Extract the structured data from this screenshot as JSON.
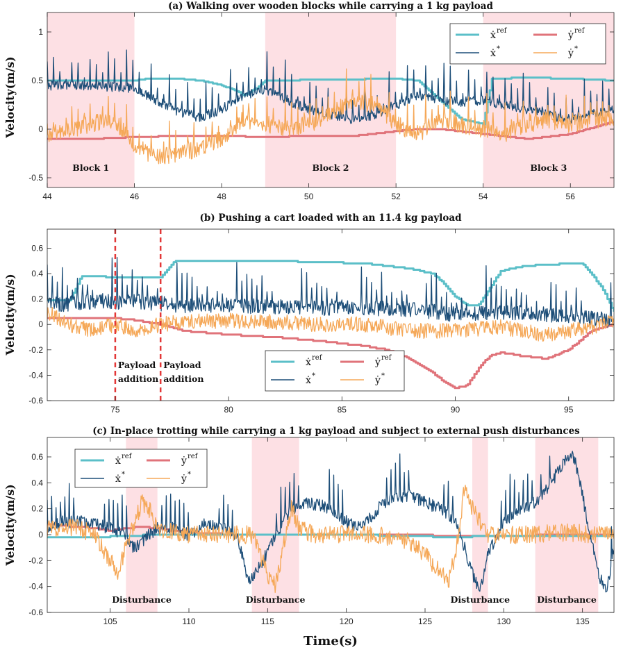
{
  "colors": {
    "x_ref": "#5bbfc8",
    "y_ref": "#e0737a",
    "x_star": "#1d4e78",
    "y_star": "#f5a858",
    "shade": "#fde0e4",
    "marker": "#e33838"
  },
  "xlabel": "Time(s)",
  "ylabel": "Velocity(m/s)",
  "chart_data": [
    {
      "id": "a",
      "type": "line",
      "title": "(a) Walking over wooden blocks while carrying a 1 kg payload",
      "xlim": [
        44,
        57
      ],
      "ylim": [
        -0.6,
        1.2
      ],
      "xticks": [
        44,
        46,
        48,
        50,
        52,
        54,
        56
      ],
      "yticks": [
        -0.5,
        0,
        0.5,
        1
      ],
      "ytick_labels": [
        "-0.5",
        "0",
        "0.5",
        "1"
      ],
      "legend": {
        "position": "top-right",
        "labels": [
          "ẋ",
          "ẏ",
          "ẋ",
          "ẏ"
        ],
        "sups": [
          "ref",
          "ref",
          "*",
          "*"
        ]
      },
      "shaded_regions": [
        {
          "x": [
            44,
            46
          ],
          "label": "Block 1"
        },
        {
          "x": [
            49,
            52
          ],
          "label": "Block 2"
        },
        {
          "x": [
            54,
            57
          ],
          "label": "Block 3"
        }
      ],
      "series": [
        {
          "name": "x_ref",
          "kind": "ref",
          "x": [
            44,
            46,
            46.3,
            47,
            47.5,
            48,
            48.3,
            48.5,
            48.8,
            49,
            52,
            52.5,
            53,
            53.5,
            54,
            54.2,
            55,
            56,
            57
          ],
          "values": [
            0.5,
            0.5,
            0.52,
            0.52,
            0.5,
            0.45,
            0.4,
            0.35,
            0.42,
            0.5,
            0.52,
            0.5,
            0.3,
            0.1,
            0.05,
            0.52,
            0.53,
            0.52,
            0.5
          ]
        },
        {
          "name": "y_ref",
          "kind": "ref",
          "x": [
            44,
            45,
            46,
            47,
            48,
            49,
            50,
            51,
            52,
            52.5,
            53,
            54,
            55,
            56,
            57
          ],
          "values": [
            -0.1,
            -0.1,
            -0.08,
            -0.07,
            -0.07,
            -0.08,
            -0.07,
            -0.07,
            -0.02,
            0.0,
            0.0,
            -0.05,
            -0.1,
            -0.05,
            0.08
          ]
        },
        {
          "name": "x_star",
          "kind": "meas",
          "x": [
            44,
            45,
            46,
            46.5,
            47,
            47.5,
            48,
            48.5,
            49,
            49.5,
            50,
            50.5,
            51,
            51.5,
            52,
            52.5,
            53,
            53.5,
            54,
            54.5,
            55,
            55.5,
            56,
            56.5,
            57
          ],
          "values": [
            0.45,
            0.45,
            0.42,
            0.3,
            0.18,
            0.12,
            0.2,
            0.35,
            0.4,
            0.3,
            0.2,
            0.15,
            0.1,
            0.15,
            0.25,
            0.35,
            0.3,
            0.28,
            0.3,
            0.25,
            0.2,
            0.15,
            0.1,
            0.15,
            0.2
          ],
          "noise": 0.05,
          "spike": 0.45,
          "period": 0.14
        },
        {
          "name": "y_star",
          "kind": "meas",
          "x": [
            44,
            44.5,
            45,
            45.5,
            46,
            46.5,
            47,
            47.5,
            48,
            48.5,
            49,
            49.5,
            50,
            50.5,
            51,
            51.5,
            52,
            52.5,
            53,
            53.5,
            54,
            54.5,
            55,
            55.5,
            56,
            56.5,
            57
          ],
          "values": [
            -0.05,
            0.0,
            0.05,
            0.1,
            -0.15,
            -0.3,
            -0.25,
            -0.2,
            -0.1,
            0.1,
            0.05,
            0.0,
            0.05,
            0.15,
            0.3,
            0.25,
            0.05,
            -0.05,
            0.1,
            0.05,
            0.0,
            -0.05,
            0.05,
            0.1,
            0.05,
            0.1,
            0.1
          ],
          "noise": 0.09,
          "spike": 0.35,
          "period": 0.14
        }
      ]
    },
    {
      "id": "b",
      "type": "line",
      "title": "(b) Pushing a cart loaded with an 11.4 kg payload",
      "xlim": [
        72,
        97
      ],
      "ylim": [
        -0.6,
        0.75
      ],
      "xticks": [
        75,
        80,
        85,
        90,
        95
      ],
      "yticks": [
        -0.6,
        -0.4,
        -0.2,
        0,
        0.2,
        0.4,
        0.6
      ],
      "ytick_labels": [
        "-0.6",
        "-0.4",
        "-0.2",
        "0",
        "0.2",
        "0.4",
        "0.6"
      ],
      "legend": {
        "position": "bottom-center",
        "labels": [
          "ẋ",
          "ẏ",
          "ẋ",
          "ẏ"
        ],
        "sups": [
          "ref",
          "ref",
          "*",
          "*"
        ]
      },
      "vlines": [
        {
          "x": 75,
          "label_lines": [
            "Payload",
            "addition"
          ]
        },
        {
          "x": 77,
          "label_lines": [
            "Payload",
            "addition"
          ]
        }
      ],
      "series": [
        {
          "name": "x_ref",
          "kind": "ref",
          "x": [
            72,
            73,
            73.5,
            74,
            75,
            76,
            77,
            77.6,
            78,
            80,
            82,
            84,
            86,
            87,
            88,
            89,
            89.5,
            90,
            90.5,
            91,
            91.5,
            92,
            93,
            94,
            95,
            95.6,
            96,
            96.5,
            97
          ],
          "values": [
            0.19,
            0.19,
            0.38,
            0.38,
            0.37,
            0.37,
            0.37,
            0.5,
            0.5,
            0.5,
            0.5,
            0.49,
            0.48,
            0.46,
            0.44,
            0.4,
            0.32,
            0.22,
            0.15,
            0.15,
            0.28,
            0.42,
            0.46,
            0.47,
            0.48,
            0.48,
            0.4,
            0.28,
            0.1
          ]
        },
        {
          "name": "y_ref",
          "kind": "ref",
          "x": [
            72,
            74,
            75,
            76,
            77,
            78,
            80,
            82,
            84,
            86,
            87,
            88,
            89,
            89.5,
            90,
            90.5,
            91,
            91.5,
            92,
            93,
            94,
            95,
            96,
            97
          ],
          "values": [
            0.05,
            0.05,
            0.05,
            0.03,
            0.0,
            -0.05,
            -0.08,
            -0.1,
            -0.13,
            -0.17,
            -0.2,
            -0.27,
            -0.38,
            -0.45,
            -0.5,
            -0.48,
            -0.35,
            -0.25,
            -0.22,
            -0.25,
            -0.27,
            -0.2,
            -0.05,
            0.0
          ]
        },
        {
          "name": "x_star",
          "kind": "meas",
          "x": [
            72,
            74,
            76,
            78,
            80,
            82,
            84,
            86,
            88,
            90,
            92,
            94,
            96,
            97
          ],
          "values": [
            0.15,
            0.18,
            0.18,
            0.15,
            0.15,
            0.14,
            0.13,
            0.13,
            0.12,
            0.08,
            0.1,
            0.08,
            0.05,
            0.03
          ],
          "noise": 0.06,
          "spike": 0.38,
          "period": 0.22
        },
        {
          "name": "y_star",
          "kind": "meas",
          "x": [
            72,
            73,
            74,
            75,
            76,
            77,
            78,
            80,
            82,
            84,
            86,
            88,
            90,
            92,
            94,
            96,
            97
          ],
          "values": [
            0.1,
            0.0,
            -0.05,
            0.0,
            -0.05,
            0.0,
            0.02,
            0.03,
            0.02,
            0.0,
            0.0,
            -0.05,
            -0.05,
            -0.02,
            -0.08,
            -0.02,
            0.02
          ],
          "noise": 0.06,
          "spike": 0.0,
          "period": 0.22
        }
      ]
    },
    {
      "id": "c",
      "type": "line",
      "title": "(c) In-place trotting while carrying a 1 kg payload and subject to external push disturbances",
      "xlim": [
        101,
        137
      ],
      "ylim": [
        -0.6,
        0.75
      ],
      "xticks": [
        105,
        110,
        115,
        120,
        125,
        130,
        135
      ],
      "yticks": [
        -0.6,
        -0.4,
        -0.2,
        0,
        0.2,
        0.4,
        0.6
      ],
      "ytick_labels": [
        "-0.6",
        "-0.4",
        "-0.2",
        "0",
        "0.2",
        "0.4",
        "0.6"
      ],
      "legend": {
        "position": "top-left",
        "labels": [
          "ẋ",
          "ẏ",
          "ẋ",
          "ẏ"
        ],
        "sups": [
          "ref",
          "ref",
          "*",
          "*"
        ]
      },
      "shaded_regions": [
        {
          "x": [
            106,
            108
          ],
          "label": "Disturbance"
        },
        {
          "x": [
            114,
            117
          ],
          "label": "Disturbance"
        },
        {
          "x": [
            128,
            129
          ],
          "label": "Disturbance"
        },
        {
          "x": [
            132,
            136
          ],
          "label": "Disturbance"
        }
      ],
      "series": [
        {
          "name": "x_ref",
          "kind": "ref",
          "x": [
            101,
            104,
            106,
            108,
            110,
            113,
            116,
            120,
            124,
            127,
            129,
            132,
            134,
            137
          ],
          "values": [
            -0.02,
            -0.02,
            -0.01,
            0.0,
            0.0,
            0.0,
            0.0,
            0.0,
            -0.01,
            -0.02,
            -0.01,
            -0.01,
            -0.01,
            -0.01
          ]
        },
        {
          "name": "y_ref",
          "kind": "ref",
          "x": [
            101,
            104,
            105,
            106,
            107,
            108,
            109,
            111,
            113,
            116,
            120,
            124,
            127,
            130,
            134,
            137
          ],
          "values": [
            0.08,
            0.05,
            0.03,
            0.05,
            0.06,
            0.05,
            0.03,
            0.01,
            0.0,
            0.0,
            0.0,
            0.0,
            -0.01,
            -0.01,
            0.0,
            0.0
          ]
        },
        {
          "name": "x_star",
          "kind": "meas",
          "x": [
            101,
            102,
            103,
            104,
            105,
            106,
            106.5,
            107,
            108,
            109,
            110,
            111,
            112,
            113,
            113.8,
            114.5,
            115.5,
            116.5,
            117.5,
            119,
            120,
            121,
            122,
            123,
            124,
            125,
            126,
            127,
            127.5,
            128,
            128.5,
            129,
            130,
            131,
            132,
            133,
            134,
            134.5,
            135,
            135.5,
            136,
            136.5,
            137
          ],
          "values": [
            0.05,
            0.1,
            0.1,
            0.08,
            0.05,
            0.0,
            -0.1,
            -0.05,
            0.05,
            0.05,
            0.0,
            0.08,
            0.05,
            0.0,
            -0.35,
            -0.25,
            0.0,
            0.2,
            0.25,
            0.2,
            0.1,
            0.05,
            0.2,
            0.3,
            0.3,
            0.25,
            0.2,
            0.1,
            -0.1,
            -0.3,
            -0.45,
            -0.15,
            0.1,
            0.2,
            0.25,
            0.4,
            0.6,
            0.6,
            0.3,
            0.0,
            -0.3,
            -0.45,
            -0.1
          ],
          "noise": 0.05,
          "spike": 0.3,
          "period": 0.28
        },
        {
          "name": "y_star",
          "kind": "meas",
          "x": [
            101,
            103,
            104,
            105,
            105.5,
            106,
            107,
            107.5,
            108,
            110,
            112,
            114,
            115,
            115.5,
            116,
            116.5,
            117,
            118,
            120,
            122,
            124,
            125,
            126,
            126.5,
            127,
            127.5,
            128,
            129,
            130,
            132,
            134,
            136,
            137
          ],
          "values": [
            0.05,
            0.05,
            0.0,
            -0.2,
            -0.3,
            -0.1,
            0.25,
            0.2,
            0.05,
            0.0,
            0.0,
            0.0,
            -0.3,
            -0.4,
            -0.1,
            0.2,
            0.05,
            0.0,
            0.0,
            0.0,
            -0.05,
            -0.15,
            -0.3,
            -0.35,
            -0.1,
            0.35,
            0.2,
            0.0,
            0.0,
            0.0,
            0.02,
            0.0,
            0.0
          ],
          "noise": 0.07,
          "spike": 0.0,
          "period": 0.28
        }
      ]
    }
  ]
}
